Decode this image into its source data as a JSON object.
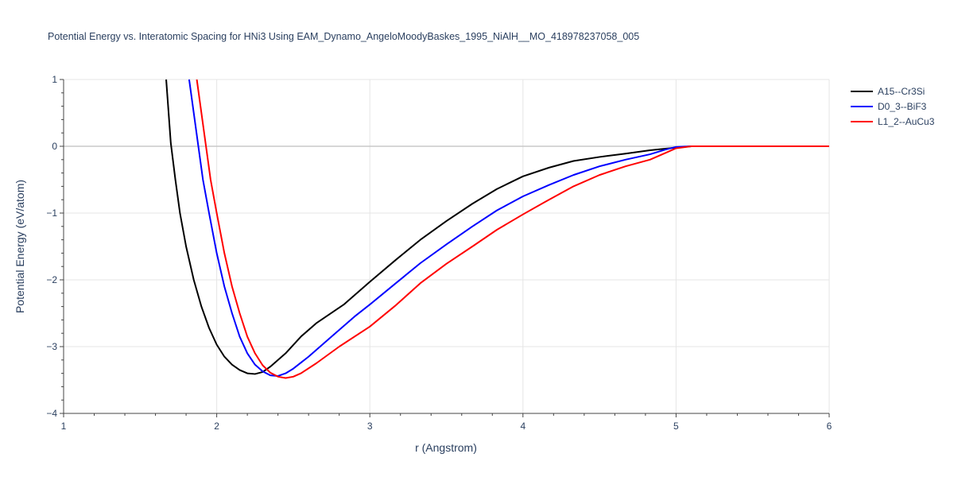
{
  "chart_data": {
    "type": "line",
    "title": "Potential Energy vs. Interatomic Spacing for HNi3 Using EAM_Dynamo_AngeloMoodyBaskes_1995_NiAlH__MO_418978237058_005",
    "xlabel": "r (Angstrom)",
    "ylabel": "Potential Energy (eV/atom)",
    "xlim": [
      1,
      6
    ],
    "ylim": [
      -4,
      1
    ],
    "x_ticks": [
      1,
      2,
      3,
      4,
      5,
      6
    ],
    "y_ticks": [
      1,
      0,
      -1,
      -2,
      -3,
      -4
    ],
    "x_tick_labels": [
      "1",
      "2",
      "3",
      "4",
      "5",
      "6"
    ],
    "y_tick_labels": [
      "1",
      "0",
      "−1",
      "−2",
      "−3",
      "−4"
    ],
    "grid": true,
    "legend_position": "top-right",
    "series": [
      {
        "name": "A15--Cr3Si",
        "color": "#000000",
        "points": [
          [
            1.67,
            1.0
          ],
          [
            1.7,
            0.05
          ],
          [
            1.73,
            -0.5
          ],
          [
            1.76,
            -1.0
          ],
          [
            1.8,
            -1.5
          ],
          [
            1.85,
            -2.0
          ],
          [
            1.9,
            -2.4
          ],
          [
            1.95,
            -2.72
          ],
          [
            2.0,
            -2.97
          ],
          [
            2.05,
            -3.15
          ],
          [
            2.1,
            -3.27
          ],
          [
            2.15,
            -3.35
          ],
          [
            2.2,
            -3.4
          ],
          [
            2.25,
            -3.41
          ],
          [
            2.3,
            -3.38
          ],
          [
            2.35,
            -3.3
          ],
          [
            2.45,
            -3.1
          ],
          [
            2.55,
            -2.85
          ],
          [
            2.65,
            -2.65
          ],
          [
            2.83,
            -2.37
          ],
          [
            3.0,
            -2.03
          ],
          [
            3.17,
            -1.7
          ],
          [
            3.33,
            -1.4
          ],
          [
            3.5,
            -1.12
          ],
          [
            3.67,
            -0.86
          ],
          [
            3.83,
            -0.64
          ],
          [
            4.0,
            -0.45
          ],
          [
            4.17,
            -0.32
          ],
          [
            4.33,
            -0.22
          ],
          [
            4.5,
            -0.16
          ],
          [
            4.67,
            -0.11
          ],
          [
            4.83,
            -0.06
          ],
          [
            5.0,
            -0.02
          ],
          [
            5.1,
            0.0
          ],
          [
            5.3,
            0.0
          ],
          [
            6.0,
            0.0
          ]
        ]
      },
      {
        "name": "D0_3--BiF3",
        "color": "#0000ff",
        "points": [
          [
            1.82,
            1.0
          ],
          [
            1.85,
            0.5
          ],
          [
            1.88,
            0.0
          ],
          [
            1.91,
            -0.5
          ],
          [
            1.95,
            -1.0
          ],
          [
            2.0,
            -1.6
          ],
          [
            2.05,
            -2.1
          ],
          [
            2.1,
            -2.5
          ],
          [
            2.15,
            -2.85
          ],
          [
            2.2,
            -3.1
          ],
          [
            2.25,
            -3.27
          ],
          [
            2.3,
            -3.37
          ],
          [
            2.35,
            -3.43
          ],
          [
            2.4,
            -3.44
          ],
          [
            2.45,
            -3.4
          ],
          [
            2.5,
            -3.33
          ],
          [
            2.6,
            -3.15
          ],
          [
            2.75,
            -2.85
          ],
          [
            2.9,
            -2.55
          ],
          [
            3.0,
            -2.37
          ],
          [
            3.17,
            -2.05
          ],
          [
            3.33,
            -1.75
          ],
          [
            3.5,
            -1.47
          ],
          [
            3.67,
            -1.2
          ],
          [
            3.83,
            -0.96
          ],
          [
            4.0,
            -0.75
          ],
          [
            4.17,
            -0.58
          ],
          [
            4.33,
            -0.43
          ],
          [
            4.5,
            -0.3
          ],
          [
            4.67,
            -0.2
          ],
          [
            4.83,
            -0.12
          ],
          [
            4.93,
            -0.05
          ],
          [
            5.0,
            -0.01
          ],
          [
            5.1,
            0.0
          ],
          [
            5.3,
            0.0
          ],
          [
            6.0,
            0.0
          ]
        ]
      },
      {
        "name": "L1_2--AuCu3",
        "color": "#ff0000",
        "points": [
          [
            1.87,
            1.0
          ],
          [
            1.9,
            0.5
          ],
          [
            1.93,
            0.0
          ],
          [
            1.96,
            -0.5
          ],
          [
            2.0,
            -1.0
          ],
          [
            2.05,
            -1.6
          ],
          [
            2.1,
            -2.1
          ],
          [
            2.15,
            -2.5
          ],
          [
            2.2,
            -2.85
          ],
          [
            2.25,
            -3.1
          ],
          [
            2.3,
            -3.28
          ],
          [
            2.35,
            -3.39
          ],
          [
            2.4,
            -3.45
          ],
          [
            2.45,
            -3.47
          ],
          [
            2.5,
            -3.45
          ],
          [
            2.55,
            -3.4
          ],
          [
            2.65,
            -3.25
          ],
          [
            2.8,
            -3.0
          ],
          [
            3.0,
            -2.7
          ],
          [
            3.17,
            -2.38
          ],
          [
            3.33,
            -2.05
          ],
          [
            3.5,
            -1.76
          ],
          [
            3.67,
            -1.5
          ],
          [
            3.83,
            -1.25
          ],
          [
            4.0,
            -1.02
          ],
          [
            4.17,
            -0.8
          ],
          [
            4.33,
            -0.6
          ],
          [
            4.5,
            -0.43
          ],
          [
            4.67,
            -0.3
          ],
          [
            4.83,
            -0.2
          ],
          [
            4.93,
            -0.1
          ],
          [
            5.0,
            -0.03
          ],
          [
            5.1,
            0.0
          ],
          [
            5.3,
            0.0
          ],
          [
            6.0,
            0.0
          ]
        ]
      }
    ]
  }
}
